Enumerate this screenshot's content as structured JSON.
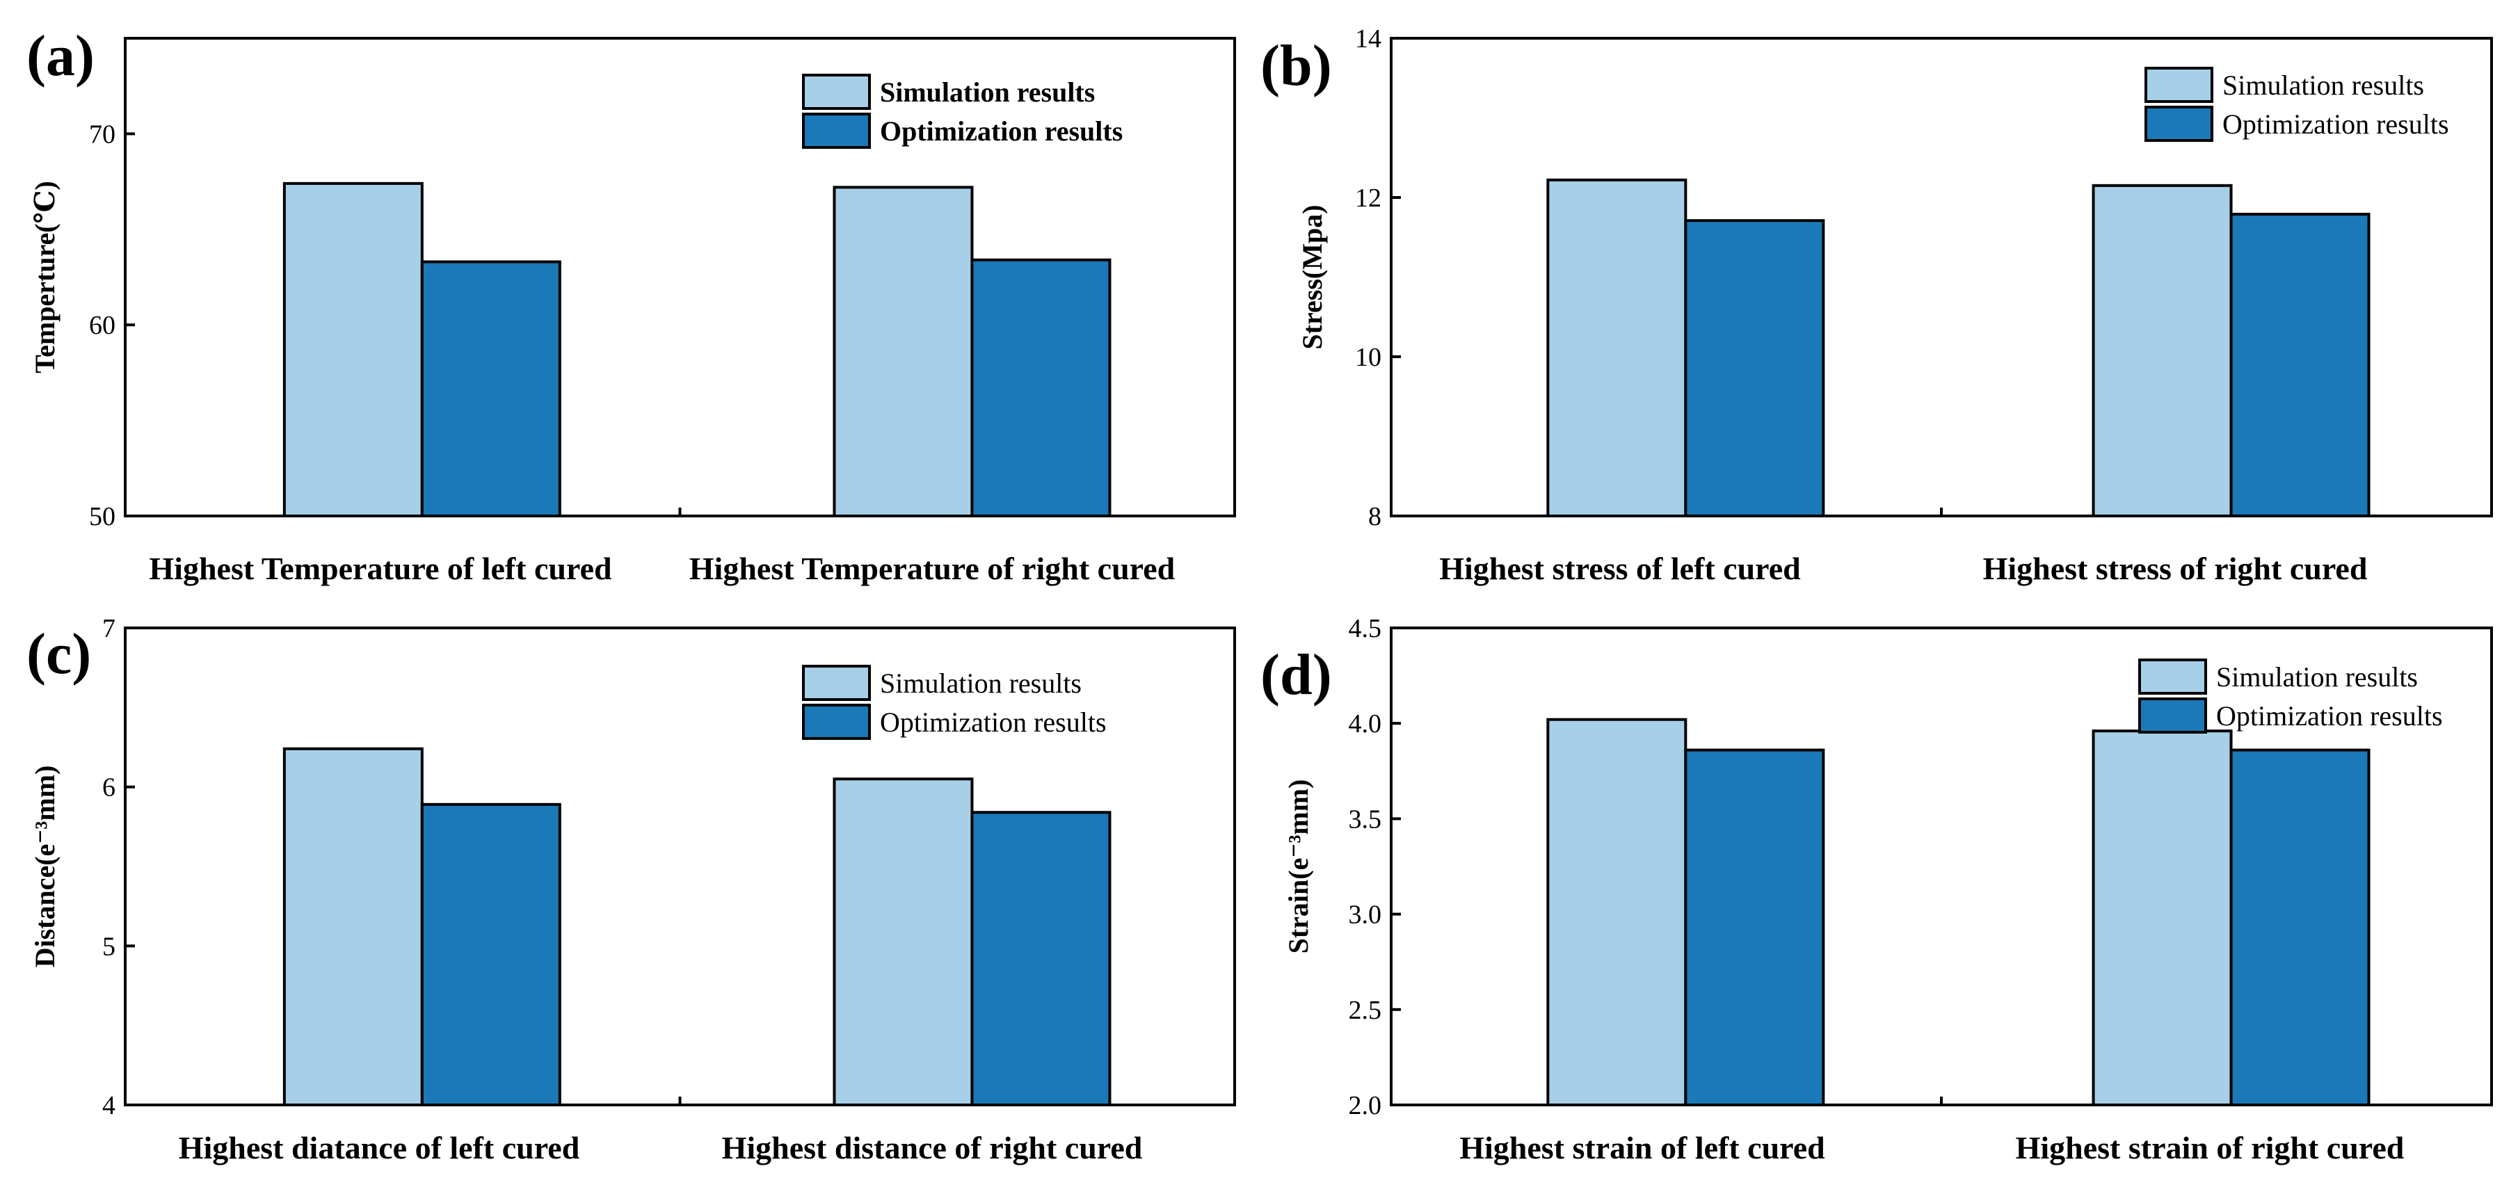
{
  "chart_data": [
    {
      "type": "bar",
      "panel": "(a)",
      "ylabel": "Temperture(℃)",
      "ylim": [
        50,
        75
      ],
      "yticks": [
        "50",
        "60",
        "70"
      ],
      "yticks_values": [
        50,
        60,
        70
      ],
      "categories": [
        "Highest Temperature of left cured",
        "Highest Temperature of right cured"
      ],
      "series": [
        {
          "name": "Simulation results",
          "values": [
            67.4,
            67.2
          ],
          "color": "#a8cfe8"
        },
        {
          "name": "Optimization results",
          "values": [
            63.3,
            63.4
          ],
          "color": "#1b79b8"
        }
      ],
      "legend": "top-right",
      "legend_bold": true,
      "grid": false
    },
    {
      "type": "bar",
      "panel": "(b)",
      "ylabel": "Stress(Mpa)",
      "ylim": [
        8,
        14
      ],
      "yticks": [
        "8",
        "10",
        "12",
        "14"
      ],
      "yticks_values": [
        8,
        10,
        12,
        14
      ],
      "categories": [
        "Highest stress of left cured",
        "Highest stress of right cured"
      ],
      "series": [
        {
          "name": "Simulation results",
          "values": [
            12.22,
            12.15
          ],
          "color": "#a8cfe8"
        },
        {
          "name": "Optimization results",
          "values": [
            11.71,
            11.79
          ],
          "color": "#1b79b8"
        }
      ],
      "legend": "top-right",
      "legend_bold": false,
      "grid": false
    },
    {
      "type": "bar",
      "panel": "(c)",
      "ylabel": "Distance(e⁻³mm)",
      "ylim": [
        4,
        7
      ],
      "yticks": [
        "4",
        "5",
        "6",
        "7"
      ],
      "yticks_values": [
        4,
        5,
        6,
        7
      ],
      "categories": [
        "Highest diatance of left cured",
        "Highest distance of right cured"
      ],
      "series": [
        {
          "name": "Simulation results",
          "values": [
            6.24,
            6.05
          ],
          "color": "#a8cfe8"
        },
        {
          "name": "Optimization results",
          "values": [
            5.89,
            5.84
          ],
          "color": "#1b79b8"
        }
      ],
      "legend": "top-right",
      "legend_bold": false,
      "grid": false
    },
    {
      "type": "bar",
      "panel": "(d)",
      "ylabel": "Strain(e⁻³mm)",
      "ylim": [
        2.0,
        4.5
      ],
      "yticks": [
        "2.0",
        "2.5",
        "3.0",
        "3.5",
        "4.0",
        "4.5"
      ],
      "yticks_values": [
        2.0,
        2.5,
        3.0,
        3.5,
        4.0,
        4.5
      ],
      "categories": [
        "Highest strain of left cured",
        "Highest strain of right cured"
      ],
      "series": [
        {
          "name": "Simulation results",
          "values": [
            4.02,
            3.96
          ],
          "color": "#a8cfe8"
        },
        {
          "name": "Optimization results",
          "values": [
            3.86,
            3.86
          ],
          "color": "#1b79b8"
        }
      ],
      "legend": "top-right",
      "legend_bold": false,
      "grid": false
    }
  ]
}
